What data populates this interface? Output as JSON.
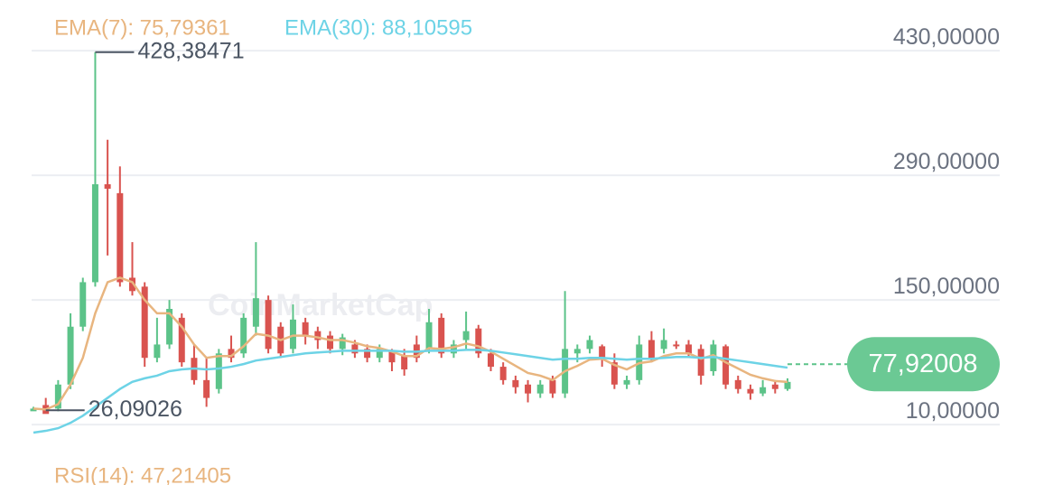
{
  "chart_data": {
    "type": "candlestick",
    "up_color": "#5cc389",
    "down_color": "#d9534f",
    "candles": {
      "open": [
        25,
        32,
        28,
        55,
        120,
        170,
        280,
        270,
        175,
        165,
        85,
        100,
        130,
        85,
        60,
        50,
        95,
        90,
        120,
        150,
        120,
        95,
        125,
        115,
        110,
        95,
        100,
        95,
        85,
        92,
        88,
        100,
        95,
        130,
        90,
        105,
        118,
        90,
        75,
        60,
        55,
        45,
        60,
        45,
        90,
        95,
        98,
        80,
        55,
        60,
        105,
        95,
        100,
        100,
        95,
        70,
        98,
        60,
        50,
        45,
        55,
        50
      ],
      "high": [
        30,
        40,
        60,
        135,
        175,
        428.38471,
        330,
        300,
        215,
        170,
        130,
        150,
        135,
        100,
        85,
        95,
        110,
        135,
        215,
        155,
        125,
        145,
        130,
        120,
        115,
        112,
        105,
        100,
        100,
        95,
        95,
        110,
        140,
        135,
        105,
        137,
        122,
        95,
        80,
        65,
        60,
        60,
        65,
        160,
        100,
        110,
        100,
        90,
        65,
        110,
        115,
        118,
        104,
        105,
        100,
        105,
        100,
        65,
        55,
        60,
        60,
        62
      ],
      "low": [
        27,
        26.09026,
        25,
        50,
        115,
        165,
        200,
        165,
        155,
        75,
        80,
        95,
        75,
        55,
        30,
        45,
        80,
        85,
        110,
        90,
        85,
        90,
        100,
        95,
        90,
        88,
        85,
        80,
        80,
        70,
        65,
        80,
        90,
        85,
        85,
        95,
        85,
        70,
        55,
        45,
        35,
        40,
        40,
        40,
        80,
        90,
        75,
        50,
        50,
        55,
        80,
        90,
        95,
        85,
        55,
        65,
        50,
        45,
        38,
        42,
        45,
        48
      ],
      "close": [
        28,
        22,
        55,
        120,
        170,
        280,
        275,
        170,
        160,
        85,
        100,
        140,
        80,
        60,
        40,
        90,
        85,
        130,
        152,
        95,
        90,
        128,
        110,
        105,
        95,
        108,
        90,
        85,
        95,
        80,
        72,
        85,
        125,
        90,
        100,
        115,
        90,
        75,
        60,
        52,
        45,
        55,
        45,
        95,
        95,
        105,
        85,
        55,
        60,
        100,
        85,
        105,
        98,
        90,
        65,
        100,
        55,
        50,
        45,
        52,
        50,
        58
      ]
    },
    "lines": [
      {
        "name": "EMA(7): 75,79361",
        "color": "#e8b57f",
        "values": [
          28,
          27,
          33,
          55,
          85,
          135,
          170,
          175,
          170,
          150,
          135,
          135,
          120,
          100,
          85,
          87,
          87,
          98,
          112,
          110,
          105,
          110,
          110,
          108,
          105,
          105,
          102,
          98,
          96,
          92,
          87,
          87,
          96,
          95,
          97,
          101,
          98,
          92,
          84,
          76,
          68,
          65,
          60,
          70,
          76,
          83,
          84,
          77,
          72,
          79,
          81,
          87,
          90,
          90,
          84,
          88,
          80,
          73,
          66,
          62,
          59,
          58
        ]
      },
      {
        "name": "EMA(30): 88,10595",
        "color": "#6dd3e6",
        "values": [
          1,
          3,
          6,
          12,
          20,
          30,
          40,
          50,
          58,
          62,
          65,
          70,
          72,
          73,
          72,
          73,
          75,
          78,
          82,
          84,
          86,
          88,
          90,
          91,
          92,
          93,
          93,
          93,
          93,
          93,
          92,
          92,
          93,
          93,
          93,
          94,
          94,
          93,
          91,
          89,
          87,
          85,
          83,
          84,
          84,
          85,
          85,
          84,
          83,
          84,
          84,
          85,
          86,
          86,
          85,
          86,
          84,
          82,
          80,
          78,
          76,
          74
        ]
      }
    ],
    "ylim": [
      0,
      460
    ],
    "yticks": [
      {
        "value": 10,
        "label": "10,00000"
      },
      {
        "value": 150,
        "label": "150,00000"
      },
      {
        "value": 290,
        "label": "290,00000"
      },
      {
        "value": 430,
        "label": "430,00000"
      }
    ],
    "grid": true,
    "annotations": [
      {
        "value": 428.38471,
        "label": "428,38471"
      },
      {
        "value": 26.09026,
        "label": "26,09026"
      }
    ],
    "current_price": {
      "value": 77.92008,
      "label": "77,92008"
    },
    "watermark": "CoinMarketCap",
    "footer": "RSI(14): 47,21405"
  }
}
